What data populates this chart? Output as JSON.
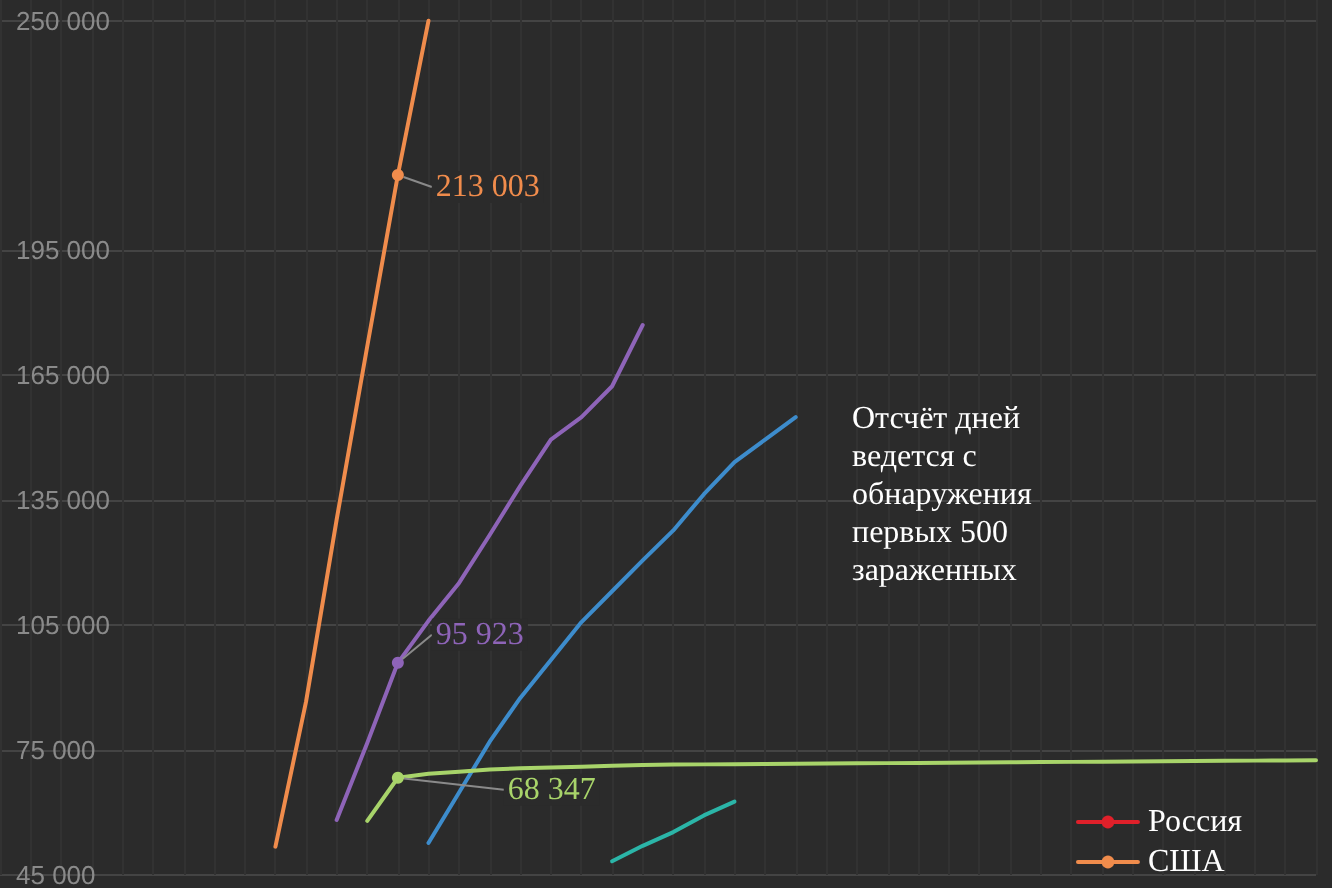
{
  "chart_data": {
    "type": "line",
    "categories": [
      null,
      null,
      null,
      null,
      null,
      null,
      null,
      null,
      null,
      null,
      null,
      null,
      null,
      null,
      null,
      null,
      null,
      null,
      null,
      null,
      null,
      null,
      null,
      null,
      null,
      null,
      null,
      null,
      null,
      null,
      null,
      null,
      null,
      null,
      null,
      null,
      null,
      null,
      null,
      null,
      null,
      null,
      null,
      null
    ],
    "ylim": [
      45000,
      255000
    ],
    "yticks": [
      {
        "value": 45000,
        "label": "45 000"
      },
      {
        "value": 75000,
        "label": "75 000"
      },
      {
        "value": 105000,
        "label": "105 000"
      },
      {
        "value": 135000,
        "label": "135 000"
      },
      {
        "value": 165000,
        "label": "165 000"
      },
      {
        "value": 195000,
        "label": "195 000"
      },
      {
        "value": 250000,
        "label": "250 000"
      }
    ],
    "grid": true,
    "legend": "bottom right",
    "marker": "none",
    "line_style": "solid",
    "tick_labels": "y",
    "annotations": [
      "Отсчёт дней ведется с обнаружения первых 500 зараженных"
    ],
    "series": [
      {
        "name": "Россия",
        "color": "#e0202a",
        "values": [
          null,
          null,
          null,
          null,
          null,
          null,
          null,
          null,
          null,
          null,
          null,
          null,
          null,
          null,
          null,
          null,
          null,
          null,
          null,
          null,
          null,
          null,
          null,
          null,
          null,
          null,
          null,
          null,
          null,
          null,
          null,
          null,
          null,
          null,
          null,
          null,
          null,
          null,
          null,
          null,
          null,
          null,
          null,
          null
        ]
      },
      {
        "name": "США",
        "color": "#f08c4c",
        "values": [
          null,
          null,
          null,
          null,
          null,
          null,
          null,
          null,
          null,
          51800,
          86600,
          130300,
          171900,
          213003,
          250000,
          null,
          null,
          null,
          null,
          null,
          null,
          null,
          null,
          null,
          null,
          null,
          null,
          null,
          null,
          null,
          null,
          null,
          null,
          null,
          null,
          null,
          null,
          null,
          null,
          null,
          null,
          null,
          null,
          null
        ],
        "value_labels": [
          null,
          null,
          null,
          null,
          null,
          null,
          null,
          null,
          null,
          null,
          null,
          null,
          null,
          "213 003",
          null,
          null,
          null,
          null,
          null,
          null,
          null,
          null,
          null,
          null,
          null,
          null,
          null,
          null,
          null,
          null,
          null,
          null,
          null,
          null,
          null,
          null,
          null,
          null,
          null,
          null,
          null,
          null,
          null,
          null
        ]
      },
      {
        "color": "#8e64b8",
        "values": [
          null,
          null,
          null,
          null,
          null,
          null,
          null,
          null,
          null,
          null,
          null,
          58200,
          76700,
          95923,
          106000,
          115100,
          126600,
          138400,
          149500,
          154900,
          162300,
          177000,
          null,
          null,
          null,
          null,
          null,
          null,
          null,
          null,
          null,
          null,
          null,
          null,
          null,
          null,
          null,
          null,
          null,
          null,
          null,
          null,
          null,
          null
        ],
        "value_labels": [
          null,
          null,
          null,
          null,
          null,
          null,
          null,
          null,
          null,
          null,
          null,
          null,
          null,
          "95 923",
          null,
          null,
          null,
          null,
          null,
          null,
          null,
          null,
          null,
          null,
          null,
          null,
          null,
          null,
          null,
          null,
          null,
          null,
          null,
          null,
          null,
          null,
          null,
          null,
          null,
          null,
          null,
          null,
          null,
          null
        ]
      },
      {
        "color": "#3d8ccc",
        "values": [
          null,
          null,
          null,
          null,
          null,
          null,
          null,
          null,
          null,
          null,
          null,
          null,
          null,
          null,
          52700,
          64800,
          77000,
          87500,
          96600,
          105700,
          113100,
          120500,
          127700,
          136400,
          144100,
          149500,
          154900,
          null,
          null,
          null,
          null,
          null,
          null,
          null,
          null,
          null,
          null,
          null,
          null,
          null,
          null,
          null,
          null,
          null
        ]
      },
      {
        "color": "#a8d46a",
        "values": [
          null,
          null,
          null,
          null,
          null,
          null,
          null,
          null,
          null,
          null,
          null,
          null,
          58000,
          68347,
          69300,
          69800,
          70300,
          70600,
          70800,
          71000,
          71200,
          71400,
          71500,
          71550,
          71600,
          71650,
          71700,
          71750,
          71800,
          71850,
          71900,
          71950,
          72000,
          72050,
          72100,
          72150,
          72200,
          72250,
          72300,
          72350,
          72400,
          72450,
          72500,
          72550
        ],
        "value_labels": [
          null,
          null,
          null,
          null,
          null,
          null,
          null,
          null,
          null,
          null,
          null,
          null,
          null,
          "68 347",
          null,
          null,
          null,
          null,
          null,
          null,
          null,
          null,
          null,
          null,
          null,
          null,
          null,
          null,
          null,
          null,
          null,
          null,
          null,
          null,
          null,
          null,
          null,
          null,
          null,
          null,
          null,
          null,
          null,
          null
        ]
      },
      {
        "color": "#2bb5a8",
        "values": [
          null,
          null,
          null,
          null,
          null,
          null,
          null,
          null,
          null,
          null,
          null,
          null,
          null,
          null,
          null,
          null,
          null,
          null,
          null,
          null,
          48300,
          52000,
          55300,
          59300,
          62600,
          null,
          null,
          null,
          null,
          null,
          null,
          null,
          null,
          null,
          null,
          null,
          null,
          null,
          null,
          null,
          null,
          null,
          null,
          null
        ]
      }
    ]
  }
}
